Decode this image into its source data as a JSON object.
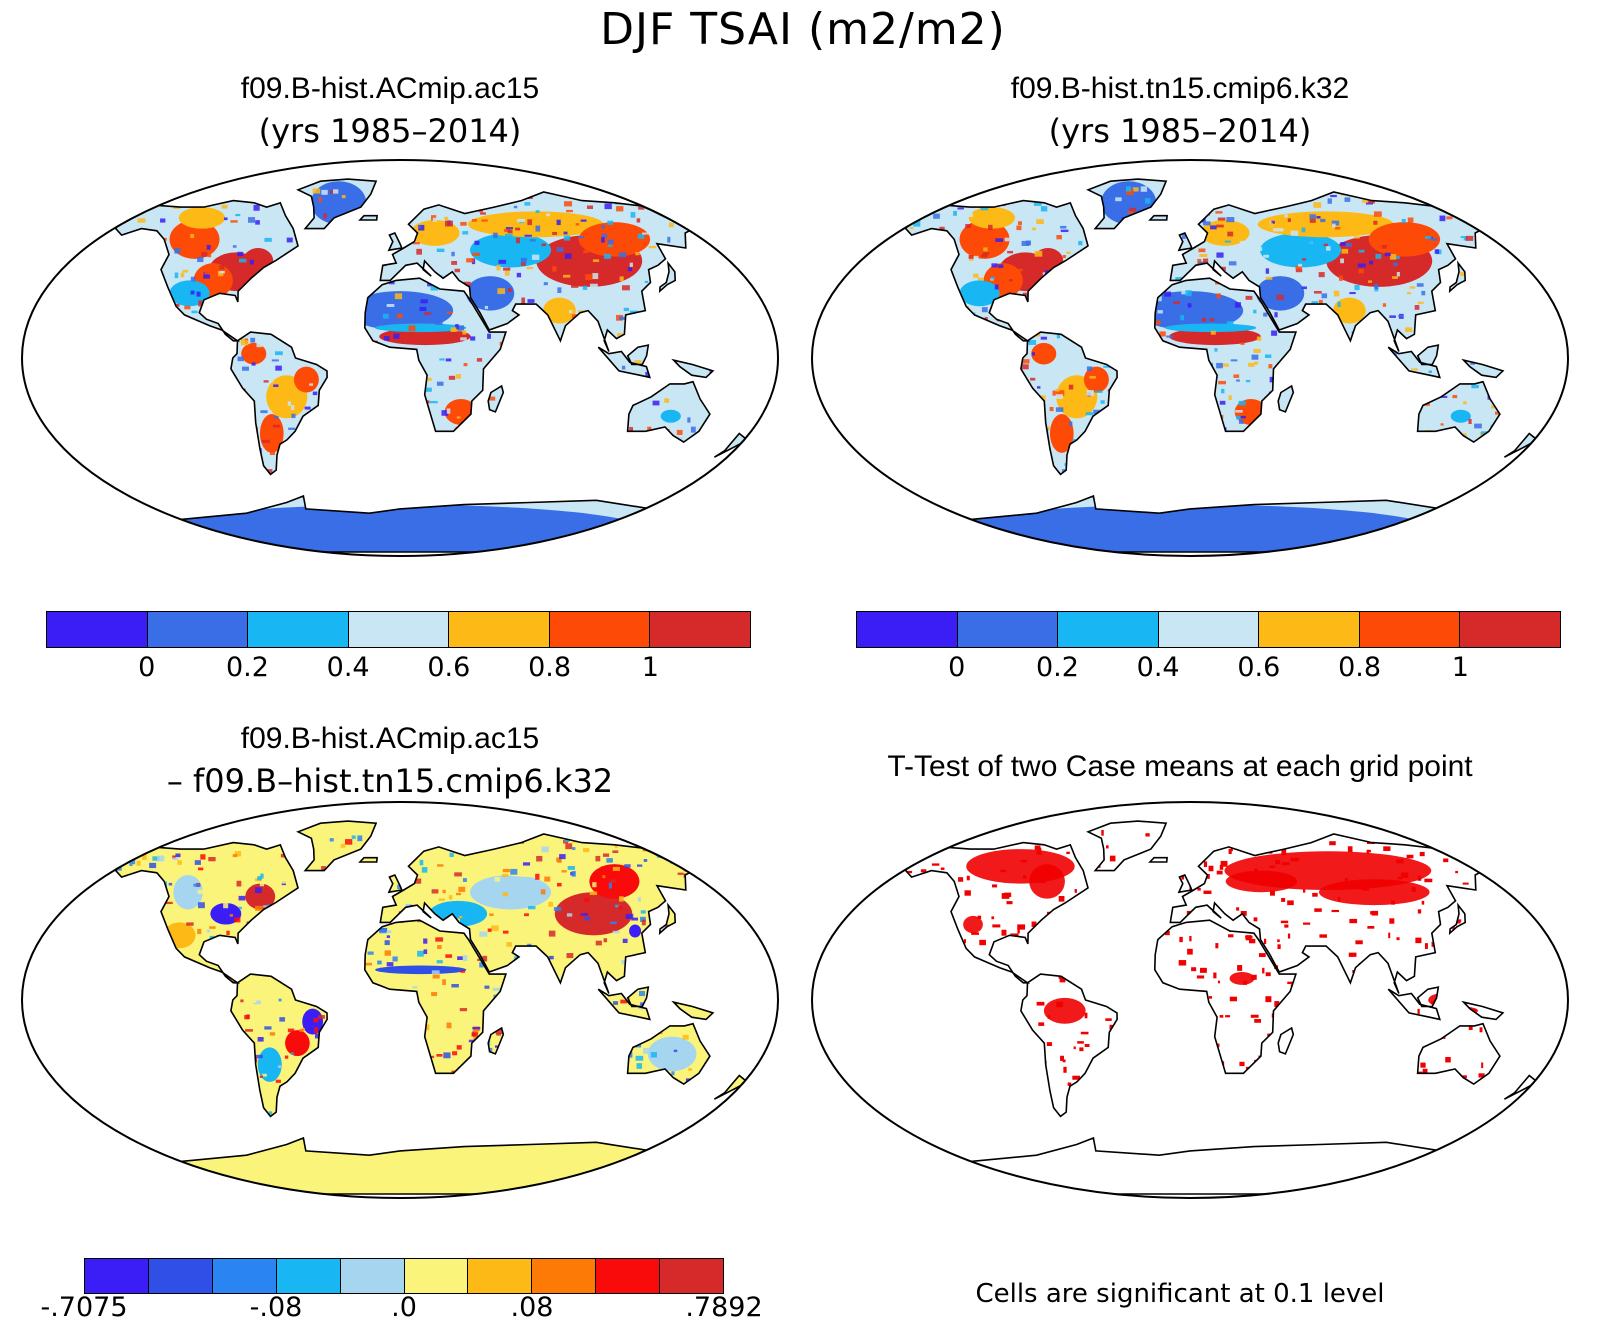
{
  "title": "DJF TSAI (m2/m2)",
  "panels": {
    "case1": {
      "name": "f09.B-hist.ACmip.ac15",
      "years": "(yrs 1985–2014)"
    },
    "case2": {
      "name": "f09.B-hist.tn15.cmip6.k32",
      "years": "(yrs 1985–2014)"
    },
    "diff": {
      "name": "f09.B-hist.ACmip.ac15",
      "minus": "– f09.B–hist.tn15.cmip6.k32"
    },
    "ttest": {
      "name": "T-Test of two Case means at each grid point",
      "note": "Cells are significant at 0.1 level"
    }
  },
  "colorbars": {
    "abs": {
      "colors": [
        "#3a1ef5",
        "#3a6ee6",
        "#18b6f2",
        "#c9e6f4",
        "#fdb915",
        "#fd4a06",
        "#d6292a"
      ],
      "labels": [
        "0",
        "0.2",
        "0.4",
        "0.6",
        "0.8",
        "1"
      ]
    },
    "diff": {
      "colors": [
        "#3a1ef5",
        "#2f4fe6",
        "#2a84f2",
        "#18b6f2",
        "#a6d5f0",
        "#fbf47a",
        "#fdb915",
        "#fd7a06",
        "#fa0b0b",
        "#d6292a"
      ],
      "labels": [
        "-.7075",
        "-.08",
        ".0",
        ".08",
        ".7892"
      ]
    }
  },
  "colors": {
    "sig": "#f00000",
    "ocean": "#ffffff",
    "outline": "#000000"
  }
}
